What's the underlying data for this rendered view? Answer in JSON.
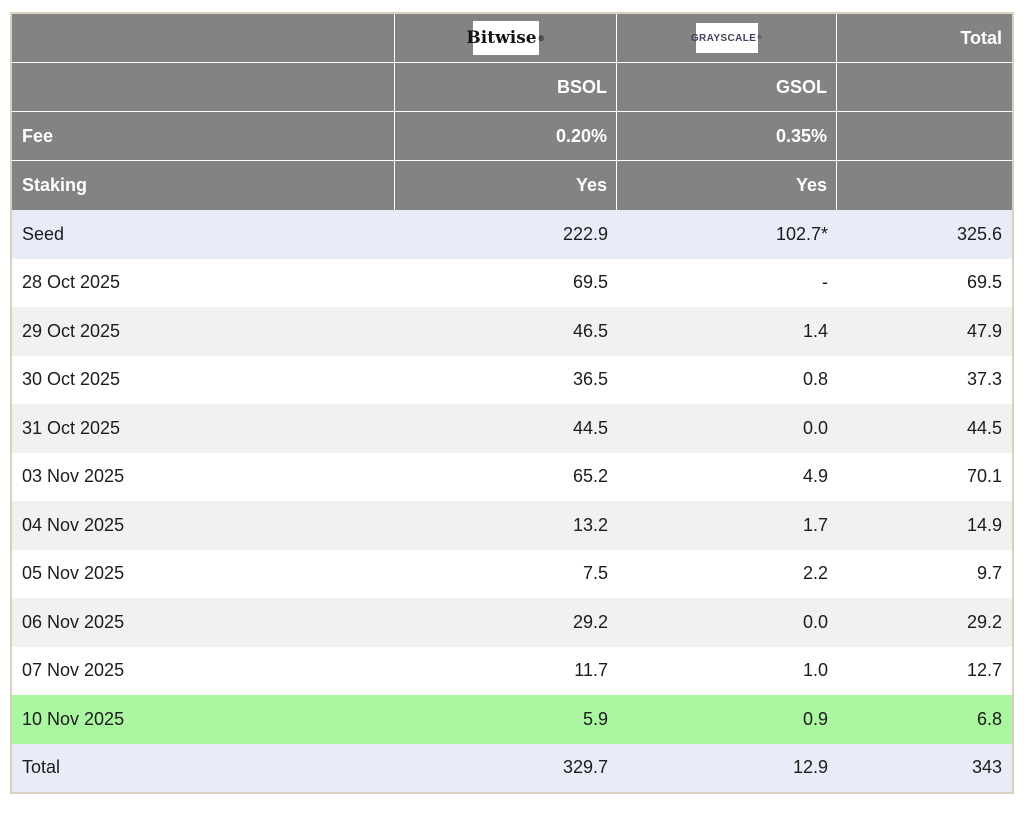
{
  "header": {
    "bitwise_logo_text": "Bitwise",
    "bitwise_reg_mark": "®",
    "grayscale_logo_text": "GRAYSCALE",
    "grayscale_reg_mark": "®",
    "total_column_label": "Total",
    "bitwise_ticker": "BSOL",
    "grayscale_ticker": "GSOL",
    "fee_row": {
      "label": "Fee",
      "bitwise": "0.20%",
      "grayscale": "0.35%"
    },
    "staking_row": {
      "label": "Staking",
      "bitwise": "Yes",
      "grayscale": "Yes"
    }
  },
  "rows": [
    {
      "label": "Seed",
      "bsol": "222.9",
      "gsol": "102.7*",
      "total": "325.6"
    },
    {
      "label": "28 Oct 2025",
      "bsol": "69.5",
      "gsol": "-",
      "total": "69.5"
    },
    {
      "label": "29 Oct 2025",
      "bsol": "46.5",
      "gsol": "1.4",
      "total": "47.9"
    },
    {
      "label": "30 Oct 2025",
      "bsol": "36.5",
      "gsol": "0.8",
      "total": "37.3"
    },
    {
      "label": "31 Oct 2025",
      "bsol": "44.5",
      "gsol": "0.0",
      "total": "44.5"
    },
    {
      "label": "03 Nov 2025",
      "bsol": "65.2",
      "gsol": "4.9",
      "total": "70.1"
    },
    {
      "label": "04 Nov 2025",
      "bsol": "13.2",
      "gsol": "1.7",
      "total": "14.9"
    },
    {
      "label": "05 Nov 2025",
      "bsol": "7.5",
      "gsol": "2.2",
      "total": "9.7"
    },
    {
      "label": "06 Nov 2025",
      "bsol": "29.2",
      "gsol": "0.0",
      "total": "29.2"
    },
    {
      "label": "07 Nov 2025",
      "bsol": "11.7",
      "gsol": "1.0",
      "total": "12.7"
    },
    {
      "label": "10 Nov 2025",
      "bsol": "5.9",
      "gsol": "0.9",
      "total": "6.8"
    },
    {
      "label": "Total",
      "bsol": "329.7",
      "gsol": "12.9",
      "total": "343"
    }
  ],
  "colors": {
    "header_bg": "#838383",
    "header_text": "#ffffff",
    "row_seed_bg": "#e8ecf8",
    "row_alt_bg": "#f1f1f0",
    "row_green_bg": "#abf7a1",
    "row_total_bg": "#e8ecf8",
    "outer_border": "#d9d2bf",
    "grayscale_logo_color": "#44445e"
  },
  "chart_data": {
    "type": "table",
    "columns": [
      "",
      "Bitwise BSOL",
      "GRAYSCALE GSOL",
      "Total"
    ],
    "fee": {
      "BSOL": "0.20%",
      "GSOL": "0.35%"
    },
    "staking": {
      "BSOL": "Yes",
      "GSOL": "Yes"
    },
    "row_labels": [
      "Seed",
      "28 Oct 2025",
      "29 Oct 2025",
      "30 Oct 2025",
      "31 Oct 2025",
      "03 Nov 2025",
      "04 Nov 2025",
      "05 Nov 2025",
      "06 Nov 2025",
      "07 Nov 2025",
      "10 Nov 2025",
      "Total"
    ],
    "series": [
      {
        "name": "BSOL",
        "values": [
          222.9,
          69.5,
          46.5,
          36.5,
          44.5,
          65.2,
          13.2,
          7.5,
          29.2,
          11.7,
          5.9,
          329.7
        ]
      },
      {
        "name": "GSOL",
        "values": [
          102.7,
          null,
          1.4,
          0.8,
          0.0,
          4.9,
          1.7,
          2.2,
          0.0,
          1.0,
          0.9,
          12.9
        ]
      },
      {
        "name": "Total",
        "values": [
          325.6,
          69.5,
          47.9,
          37.3,
          44.5,
          70.1,
          14.9,
          9.7,
          29.2,
          12.7,
          6.8,
          343
        ]
      }
    ],
    "annotations": {
      "seed_gsol_asterisk": "102.7*",
      "highlighted_row": "10 Nov 2025"
    }
  }
}
